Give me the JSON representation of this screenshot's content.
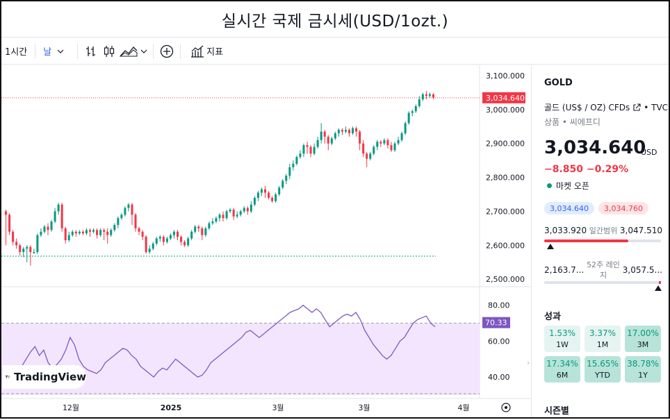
{
  "title": "실시간 국제 금시세(USD/1ozt.)",
  "toolbar": {
    "interval": "1시간",
    "style": "날",
    "indicators": "지표"
  },
  "price_axis": {
    "labels": [
      "3,100.000",
      "3,000.000",
      "2,900.000",
      "2,800.000",
      "2,700.000",
      "2,600.000",
      "2,500.000"
    ],
    "current_tag": "3,034.640"
  },
  "rsi_axis": {
    "labels": [
      "80.00",
      "60.00",
      "40.00"
    ],
    "current_tag": "70.33"
  },
  "time_axis": [
    "12월",
    "2025",
    "3월",
    "3월",
    "4월"
  ],
  "branding": "TradingView",
  "panel": {
    "symbol": "GOLD",
    "name": "골드 (US$ / OZ) CFDs",
    "source": "• TVC",
    "category": "상품 • 씨에프디",
    "price": "3,034.640",
    "currency": "USD",
    "change": "−8.850  −0.29%",
    "market_status": "마켓 오픈",
    "bid": "3,034.640",
    "ask": "3,034.760",
    "day_low": "3,033.920",
    "day_range_label": "일간범위",
    "day_high": "3,047.510",
    "week52_low": "2,163.7...",
    "week52_label": "52주 레인지",
    "week52_high": "3,057.5...",
    "performance_title": "성과",
    "performance": [
      {
        "value": "1.53%",
        "period": "1W"
      },
      {
        "value": "3.37%",
        "period": "1M"
      },
      {
        "value": "17.00%",
        "period": "3M"
      },
      {
        "value": "17.34%",
        "period": "6M"
      },
      {
        "value": "15.65%",
        "period": "YTD"
      },
      {
        "value": "38.78%",
        "period": "1Y"
      }
    ],
    "seasonals_title": "시즌별"
  },
  "colors": {
    "up": "#089981",
    "down": "#f23645",
    "rsi": "#7e57c2",
    "rsi_band": "#f3e5fd"
  },
  "chart_data": {
    "type": "candlestick",
    "ylim": [
      2480,
      3110
    ],
    "rsi_ylim": [
      30,
      88
    ],
    "candles": [
      [
        2700,
        2690,
        2600,
        2705
      ],
      [
        2690,
        2640,
        2630,
        2695
      ],
      [
        2640,
        2610,
        2600,
        2645
      ],
      [
        2610,
        2600,
        2590,
        2620
      ],
      [
        2600,
        2580,
        2570,
        2605
      ],
      [
        2580,
        2590,
        2565,
        2595
      ],
      [
        2590,
        2595,
        2550,
        2600
      ],
      [
        2595,
        2580,
        2540,
        2600
      ],
      [
        2580,
        2580,
        2575,
        2590
      ],
      [
        2580,
        2630,
        2575,
        2635
      ],
      [
        2630,
        2640,
        2625,
        2650
      ],
      [
        2640,
        2655,
        2635,
        2660
      ],
      [
        2655,
        2645,
        2630,
        2665
      ],
      [
        2645,
        2670,
        2640,
        2675
      ],
      [
        2670,
        2700,
        2665,
        2710
      ],
      [
        2700,
        2720,
        2690,
        2725
      ],
      [
        2720,
        2650,
        2640,
        2725
      ],
      [
        2650,
        2615,
        2605,
        2655
      ],
      [
        2615,
        2630,
        2610,
        2640
      ],
      [
        2630,
        2640,
        2625,
        2645
      ],
      [
        2640,
        2635,
        2625,
        2645
      ],
      [
        2635,
        2640,
        2630,
        2645
      ],
      [
        2640,
        2635,
        2630,
        2645
      ],
      [
        2635,
        2645,
        2630,
        2650
      ],
      [
        2645,
        2640,
        2625,
        2650
      ],
      [
        2640,
        2645,
        2635,
        2650
      ],
      [
        2645,
        2630,
        2620,
        2650
      ],
      [
        2630,
        2645,
        2625,
        2650
      ],
      [
        2645,
        2640,
        2615,
        2650
      ],
      [
        2640,
        2630,
        2605,
        2650
      ],
      [
        2630,
        2645,
        2625,
        2650
      ],
      [
        2645,
        2660,
        2640,
        2665
      ],
      [
        2660,
        2680,
        2650,
        2685
      ],
      [
        2680,
        2690,
        2675,
        2695
      ],
      [
        2690,
        2710,
        2685,
        2715
      ],
      [
        2710,
        2720,
        2700,
        2725
      ],
      [
        2720,
        2690,
        2660,
        2725
      ],
      [
        2690,
        2650,
        2640,
        2695
      ],
      [
        2650,
        2640,
        2630,
        2655
      ],
      [
        2640,
        2625,
        2615,
        2645
      ],
      [
        2625,
        2580,
        2575,
        2630
      ],
      [
        2580,
        2590,
        2575,
        2600
      ],
      [
        2590,
        2605,
        2585,
        2610
      ],
      [
        2605,
        2620,
        2600,
        2625
      ],
      [
        2620,
        2625,
        2610,
        2630
      ],
      [
        2625,
        2610,
        2600,
        2630
      ],
      [
        2610,
        2620,
        2605,
        2625
      ],
      [
        2620,
        2630,
        2615,
        2635
      ],
      [
        2630,
        2640,
        2620,
        2645
      ],
      [
        2640,
        2625,
        2615,
        2645
      ],
      [
        2625,
        2610,
        2600,
        2630
      ],
      [
        2610,
        2600,
        2595,
        2615
      ],
      [
        2600,
        2620,
        2595,
        2625
      ],
      [
        2620,
        2640,
        2615,
        2645
      ],
      [
        2640,
        2655,
        2635,
        2660
      ],
      [
        2655,
        2650,
        2640,
        2660
      ],
      [
        2650,
        2630,
        2615,
        2655
      ],
      [
        2630,
        2650,
        2625,
        2655
      ],
      [
        2650,
        2665,
        2645,
        2670
      ],
      [
        2665,
        2670,
        2660,
        2680
      ],
      [
        2670,
        2680,
        2665,
        2685
      ],
      [
        2680,
        2690,
        2670,
        2695
      ],
      [
        2690,
        2680,
        2670,
        2700
      ],
      [
        2680,
        2700,
        2675,
        2705
      ],
      [
        2700,
        2705,
        2695,
        2710
      ],
      [
        2705,
        2685,
        2675,
        2710
      ],
      [
        2685,
        2690,
        2680,
        2700
      ],
      [
        2690,
        2700,
        2685,
        2705
      ],
      [
        2700,
        2710,
        2695,
        2715
      ],
      [
        2710,
        2700,
        2690,
        2715
      ],
      [
        2700,
        2720,
        2695,
        2730
      ],
      [
        2720,
        2740,
        2715,
        2745
      ],
      [
        2740,
        2755,
        2730,
        2760
      ],
      [
        2755,
        2765,
        2745,
        2770
      ],
      [
        2765,
        2755,
        2740,
        2775
      ],
      [
        2755,
        2740,
        2735,
        2760
      ],
      [
        2740,
        2730,
        2725,
        2745
      ],
      [
        2730,
        2750,
        2725,
        2755
      ],
      [
        2750,
        2770,
        2745,
        2775
      ],
      [
        2770,
        2790,
        2765,
        2795
      ],
      [
        2790,
        2805,
        2780,
        2810
      ],
      [
        2805,
        2830,
        2795,
        2840
      ],
      [
        2830,
        2840,
        2820,
        2850
      ],
      [
        2840,
        2860,
        2835,
        2865
      ],
      [
        2860,
        2870,
        2855,
        2880
      ],
      [
        2870,
        2895,
        2860,
        2900
      ],
      [
        2895,
        2890,
        2870,
        2905
      ],
      [
        2890,
        2870,
        2860,
        2895
      ],
      [
        2870,
        2890,
        2865,
        2900
      ],
      [
        2890,
        2910,
        2885,
        2920
      ],
      [
        2910,
        2935,
        2900,
        2960
      ],
      [
        2935,
        2920,
        2900,
        2940
      ],
      [
        2920,
        2900,
        2880,
        2925
      ],
      [
        2900,
        2915,
        2895,
        2920
      ],
      [
        2915,
        2930,
        2910,
        2935
      ],
      [
        2930,
        2940,
        2920,
        2945
      ],
      [
        2940,
        2935,
        2925,
        2945
      ],
      [
        2935,
        2940,
        2930,
        2950
      ],
      [
        2940,
        2930,
        2920,
        2945
      ],
      [
        2930,
        2945,
        2925,
        2950
      ],
      [
        2945,
        2935,
        2920,
        2950
      ],
      [
        2935,
        2900,
        2880,
        2940
      ],
      [
        2900,
        2870,
        2860,
        2910
      ],
      [
        2870,
        2855,
        2830,
        2875
      ],
      [
        2855,
        2870,
        2850,
        2875
      ],
      [
        2870,
        2890,
        2865,
        2895
      ],
      [
        2890,
        2905,
        2880,
        2910
      ],
      [
        2905,
        2900,
        2890,
        2910
      ],
      [
        2900,
        2910,
        2895,
        2915
      ],
      [
        2910,
        2895,
        2885,
        2915
      ],
      [
        2895,
        2880,
        2875,
        2905
      ],
      [
        2880,
        2900,
        2875,
        2905
      ],
      [
        2900,
        2910,
        2895,
        2920
      ],
      [
        2910,
        2930,
        2905,
        2935
      ],
      [
        2930,
        2960,
        2925,
        2965
      ],
      [
        2960,
        2990,
        2955,
        2995
      ],
      [
        2990,
        2995,
        2980,
        3000
      ],
      [
        2995,
        3010,
        2990,
        3015
      ],
      [
        3010,
        3030,
        3005,
        3040
      ],
      [
        3030,
        3045,
        3025,
        3050
      ],
      [
        3045,
        3040,
        3030,
        3055
      ],
      [
        3040,
        3045,
        3035,
        3050
      ],
      [
        3045,
        3035,
        3030,
        3048
      ]
    ],
    "rsi": [
      44,
      40,
      39,
      42,
      46,
      50,
      54,
      57,
      52,
      55,
      48,
      45,
      47,
      50,
      55,
      62,
      58,
      50,
      46,
      44,
      43,
      42,
      44,
      48,
      50,
      52,
      54,
      56,
      55,
      52,
      50,
      46,
      44,
      42,
      40,
      43,
      45,
      44,
      47,
      50,
      48,
      46,
      44,
      42,
      40,
      41,
      44,
      48,
      50,
      52,
      54,
      56,
      58,
      60,
      62,
      65,
      66,
      64,
      62,
      64,
      66,
      68,
      70,
      72,
      74,
      76,
      77,
      78,
      80,
      78,
      76,
      78,
      76,
      72,
      68,
      70,
      72,
      74,
      75,
      74,
      76,
      72,
      66,
      62,
      58,
      55,
      52,
      50,
      52,
      56,
      60,
      62,
      66,
      70,
      72,
      73,
      74,
      70,
      68
    ]
  }
}
